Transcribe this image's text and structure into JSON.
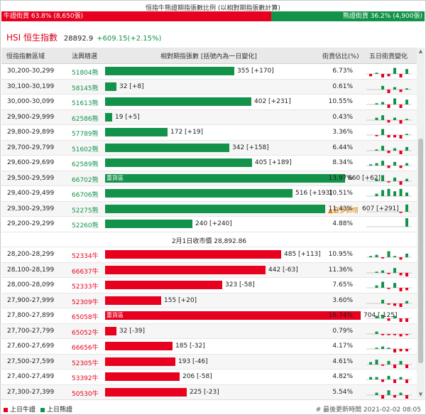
{
  "ratio": {
    "title": "恒指牛熊證期指張數比例 (以相對期指張數計算)",
    "bull_label": "牛證街貨 63.8% (8,650張)",
    "bear_label": "熊證街貨 36.2% (4,900張)",
    "bull_pct": 63.8,
    "bull_color": "#e8001f",
    "bear_color": "#13934a"
  },
  "index": {
    "name": "HSI 恒生指數",
    "value": "28892.9",
    "change": "+609.15(+2.15%)"
  },
  "table": {
    "headers": {
      "range": "恒指指數區域",
      "code": "法興精選",
      "contracts": "相對期指張數 [括號內為一日變化]",
      "pct": "街貨佔比(%)",
      "five_day": "五日街貨變化"
    },
    "scale_max": 704,
    "bear_rows": [
      {
        "range": "30,200-30,299",
        "code": "51804熊",
        "value": 355,
        "label": "355 [+170]",
        "pct": "6.73%",
        "spark": [
          -2,
          1,
          -3,
          -2,
          5,
          -7,
          4
        ]
      },
      {
        "range": "30,100-30,199",
        "code": "58145熊",
        "value": 32,
        "label": "32 [+8]",
        "pct": "0.61%",
        "spark": [
          0,
          0,
          3,
          -4,
          2,
          -2,
          1
        ]
      },
      {
        "range": "30,000-30,099",
        "code": "51613熊",
        "value": 402,
        "label": "402 [+231]",
        "pct": "10.55%",
        "spark": [
          0,
          1,
          2,
          -4,
          5,
          -7,
          4
        ]
      },
      {
        "range": "29,900-29,999",
        "code": "62586熊",
        "value": 19,
        "label": "19 [+5]",
        "pct": "0.43%",
        "spark": [
          0,
          2,
          4,
          -2,
          2,
          -4,
          1
        ]
      },
      {
        "range": "29,800-29,899",
        "code": "57789熊",
        "value": 172,
        "label": "172 [+19]",
        "pct": "3.36%",
        "spark": [
          0,
          -1,
          5,
          -2,
          -2,
          -3,
          1
        ]
      },
      {
        "range": "29,700-29,799",
        "code": "51602熊",
        "value": 342,
        "label": "342 [+158]",
        "pct": "6.44%",
        "spark": [
          0,
          1,
          4,
          -2,
          2,
          -3,
          3
        ]
      },
      {
        "range": "29,600-29,699",
        "code": "62589熊",
        "value": 405,
        "label": "405 [+189]",
        "pct": "8.34%",
        "spark": [
          1,
          2,
          4,
          -2,
          3,
          -2,
          2
        ]
      },
      {
        "range": "29,500-29,599",
        "code": "66702熊",
        "value": 660,
        "label": "660 [+62]",
        "pct": "13.97%",
        "spark": [
          0,
          2,
          5,
          -1,
          3,
          -3,
          2
        ],
        "tag": "重貨區"
      },
      {
        "range": "29,400-29,499",
        "code": "66706熊",
        "value": 516,
        "label": "516 [+193]",
        "pct": "10.51%",
        "spark": [
          0,
          2,
          5,
          6,
          4,
          6,
          3
        ]
      },
      {
        "range": "29,300-29,399",
        "code": "52275熊",
        "value": 607,
        "label": "607 [+291]",
        "pct": "11.43%",
        "spark": [
          0,
          0,
          0,
          0,
          0,
          -1,
          6
        ],
        "flag": "▲最多新增"
      },
      {
        "range": "29,200-29,299",
        "code": "52260熊",
        "value": 240,
        "label": "240 [+240]",
        "pct": "4.88%",
        "spark": [
          0,
          0,
          0,
          0,
          0,
          0,
          7
        ]
      }
    ],
    "close_text": "2月1日收市價 28,892.86",
    "bull_rows": [
      {
        "range": "28,200-28,299",
        "code": "52334牛",
        "value": 485,
        "label": "485 [+113]",
        "pct": "10.95%",
        "spark": [
          1,
          2,
          -1,
          5,
          1,
          -2,
          3
        ]
      },
      {
        "range": "28,100-28,199",
        "code": "66637牛",
        "value": 442,
        "label": "442 [-63]",
        "pct": "11.36%",
        "spark": [
          0,
          1,
          2,
          -1,
          4,
          -2,
          -3
        ]
      },
      {
        "range": "28,000-28,099",
        "code": "52333牛",
        "value": 323,
        "label": "323 [-58]",
        "pct": "7.65%",
        "spark": [
          0,
          2,
          5,
          -1,
          4,
          -3,
          -2
        ]
      },
      {
        "range": "27,900-27,999",
        "code": "52309牛",
        "value": 155,
        "label": "155 [+20]",
        "pct": "3.60%",
        "spark": [
          0,
          0,
          3,
          -1,
          -2,
          -3,
          2
        ]
      },
      {
        "range": "27,800-27,899",
        "code": "65058牛",
        "value": 704,
        "label": "704 [-125]",
        "pct": "16.74%",
        "spark": [
          0,
          2,
          3,
          -2,
          2,
          -4,
          -3
        ],
        "tag": "重貨區"
      },
      {
        "range": "27,700-27,799",
        "code": "65052牛",
        "value": 32,
        "label": "32 [-39]",
        "pct": "0.79%",
        "spark": [
          0,
          2,
          -1,
          -1,
          -1,
          -2,
          -1
        ]
      },
      {
        "range": "27,600-27,699",
        "code": "66656牛",
        "value": 185,
        "label": "185 [-32]",
        "pct": "4.17%",
        "spark": [
          0,
          1,
          2,
          1,
          -3,
          -2,
          -2
        ]
      },
      {
        "range": "27,500-27,599",
        "code": "52305牛",
        "value": 193,
        "label": "193 [-46]",
        "pct": "4.61%",
        "spark": [
          2,
          4,
          -1,
          3,
          -3,
          3,
          -4
        ]
      },
      {
        "range": "27,400-27,499",
        "code": "53392牛",
        "value": 206,
        "label": "206 [-58]",
        "pct": "4.82%",
        "spark": [
          2,
          2,
          -2,
          3,
          -3,
          2,
          -4
        ]
      },
      {
        "range": "27,300-27,399",
        "code": "50530牛",
        "value": 225,
        "label": "225 [-23]",
        "pct": "5.54%",
        "spark": [
          0,
          2,
          -3,
          4,
          -2,
          2,
          -5
        ]
      }
    ]
  },
  "footer": {
    "bull_legend": "上日牛證",
    "bear_legend": "上日熊證",
    "updated": "# 最後更新時間   2021-02-02 08:05"
  }
}
